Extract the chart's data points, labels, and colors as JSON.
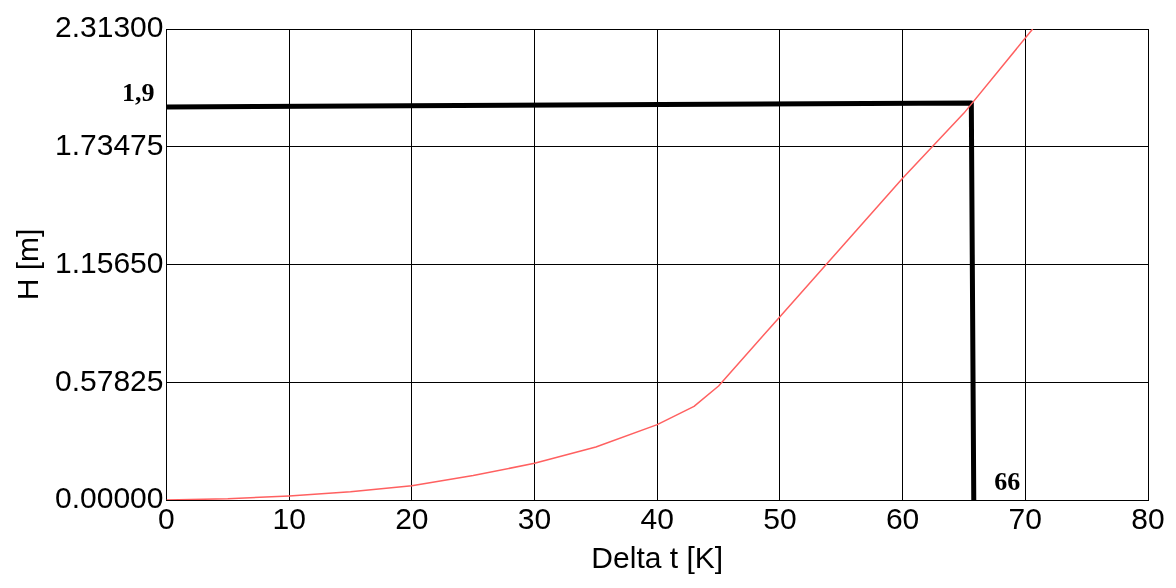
{
  "chart_data": {
    "type": "line",
    "xlabel": "Delta t [K]",
    "ylabel": "H [m]",
    "xlim": [
      0,
      80
    ],
    "xticks": [
      0,
      10,
      20,
      30,
      40,
      50,
      60,
      70,
      80
    ],
    "ylim": [
      0,
      2.313
    ],
    "yticks": [
      {
        "value": 0,
        "label": "0.00000"
      },
      {
        "value": 0.57825,
        "label": "0.57825"
      },
      {
        "value": 1.1565,
        "label": "1.15650"
      },
      {
        "value": 1.73475,
        "label": "1.73475"
      },
      {
        "value": 2.313,
        "label": "2.31300"
      }
    ],
    "grid": true,
    "legend": false,
    "marker": "none",
    "line_style": "solid",
    "series": [
      {
        "color": "#ff6060",
        "x": [
          0,
          5,
          10,
          15,
          20,
          25,
          30,
          35,
          40,
          43,
          45,
          50,
          55,
          60,
          65,
          70.6
        ],
        "values": [
          0,
          0.006,
          0.02,
          0.04,
          0.07,
          0.12,
          0.18,
          0.26,
          0.37,
          0.46,
          0.56,
          0.9,
          1.24,
          1.58,
          1.9,
          2.313
        ]
      },
      {
        "color": "#000000",
        "x": [
          0,
          65.6,
          65.8
        ],
        "values": [
          1.93,
          1.95,
          0
        ]
      }
    ],
    "annotations": [
      {
        "text": "1,9",
        "x": 0,
        "y": 1.9
      },
      {
        "text": "66",
        "x": 66,
        "y": 0
      }
    ]
  }
}
